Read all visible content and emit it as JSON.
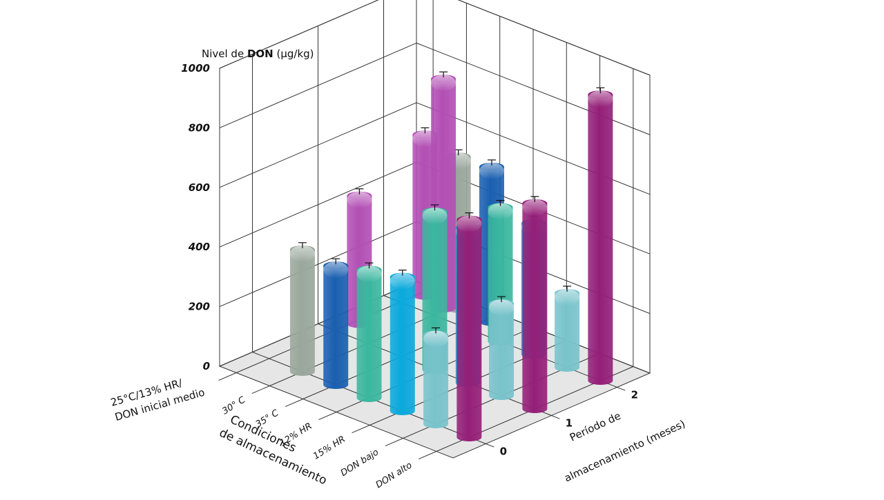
{
  "chart_data": {
    "type": "bar",
    "title": "",
    "ylabel": {
      "prefix": "Nivel de ",
      "bold": "DON",
      "suffix": " (µg/kg)"
    },
    "xlabel": [
      "Condiciones",
      "de almacenamiento"
    ],
    "zlabel": [
      "Período de",
      "almacenamiento (meses)"
    ],
    "categories": [
      "25°C/13% HR/ DON inicial medio",
      "30° C",
      "35° C",
      "12% HR",
      "15% HR",
      "DON bajo",
      "DON alto"
    ],
    "periods": [
      "0",
      "1",
      "2"
    ],
    "y_ticks": [
      "0",
      "200",
      "400",
      "600",
      "800",
      "1000"
    ],
    "ylim": [
      0,
      1000
    ],
    "grid": true,
    "colors": [
      "#b24fb4",
      "#9aa79c",
      "#1a5fb0",
      "#3bb79f",
      "#0aa9dc",
      "#78c3cb",
      "#941f78"
    ],
    "series": [
      {
        "name": "0",
        "values": [
          null,
          410,
          400,
          430,
          450,
          300,
          730
        ]
      },
      {
        "name": "1",
        "values": [
          null,
          null,
          null,
          530,
          520,
          310,
          690
        ]
      },
      {
        "name": "2",
        "values": [
          null,
          null,
          null,
          450,
          440,
          250,
          960
        ]
      }
    ],
    "background_bars": [
      {
        "category": "25°C/13% HR/ DON inicial medio",
        "value": 430
      },
      {
        "category": "25°C/13% HR/ DON inicial medio",
        "value": 540
      },
      {
        "category": "30° C",
        "value": 510
      },
      {
        "category": "35° C",
        "value": 520
      },
      {
        "category": "25°C/13% HR/ DON inicial medio",
        "value": 770
      }
    ]
  }
}
